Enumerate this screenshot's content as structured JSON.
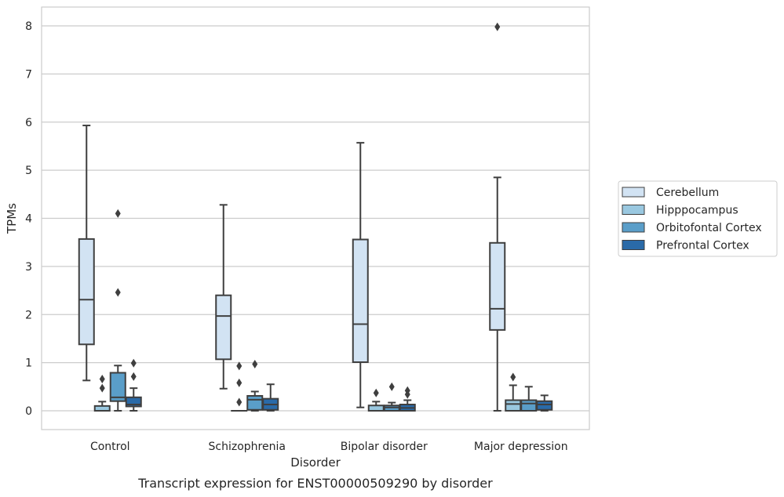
{
  "chart_data": {
    "type": "box",
    "title": "",
    "caption": "Transcript expression for ENST00000509290 by disorder",
    "xlabel": "Disorder",
    "ylabel": "TPMs",
    "ylim": [
      -0.4,
      8.4
    ],
    "yticks": [
      0,
      1,
      2,
      3,
      4,
      5,
      6,
      7,
      8
    ],
    "grid": "horizontal",
    "legend_position": "right",
    "categories": [
      "Control",
      "Schizophrenia",
      "Bipolar disorder",
      "Major depression"
    ],
    "series": [
      {
        "name": "Cerebellum",
        "color": "#d2e3f3",
        "boxes": [
          {
            "whislo": 0.63,
            "q1": 1.38,
            "med": 2.31,
            "q3": 3.57,
            "whishi": 5.93,
            "fliers": []
          },
          {
            "whislo": 0.46,
            "q1": 1.07,
            "med": 1.97,
            "q3": 2.4,
            "whishi": 4.28,
            "fliers": []
          },
          {
            "whislo": 0.07,
            "q1": 1.01,
            "med": 1.8,
            "q3": 3.56,
            "whishi": 5.57,
            "fliers": []
          },
          {
            "whislo": 0.0,
            "q1": 1.68,
            "med": 2.12,
            "q3": 3.49,
            "whishi": 4.85,
            "fliers": [
              7.98
            ]
          }
        ]
      },
      {
        "name": "Hipppocampus",
        "color": "#9ac8e0",
        "boxes": [
          {
            "whislo": 0.0,
            "q1": 0.0,
            "med": 0.0,
            "q3": 0.1,
            "whishi": 0.19,
            "fliers": [
              0.47,
              0.66
            ]
          },
          {
            "whislo": 0.0,
            "q1": 0.0,
            "med": 0.0,
            "q3": 0.0,
            "whishi": 0.0,
            "fliers": [
              0.18,
              0.58,
              0.93
            ]
          },
          {
            "whislo": 0.0,
            "q1": 0.0,
            "med": 0.0,
            "q3": 0.11,
            "whishi": 0.19,
            "fliers": [
              0.37
            ]
          },
          {
            "whislo": 0.0,
            "q1": 0.0,
            "med": 0.14,
            "q3": 0.22,
            "whishi": 0.53,
            "fliers": [
              0.7
            ]
          }
        ]
      },
      {
        "name": "Orbitofontal Cortex",
        "color": "#5a9ec9",
        "boxes": [
          {
            "whislo": 0.0,
            "q1": 0.2,
            "med": 0.28,
            "q3": 0.79,
            "whishi": 0.94,
            "fliers": [
              2.46,
              4.1
            ]
          },
          {
            "whislo": 0.0,
            "q1": 0.02,
            "med": 0.23,
            "q3": 0.31,
            "whishi": 0.4,
            "fliers": [
              0.97
            ]
          },
          {
            "whislo": 0.0,
            "q1": 0.0,
            "med": 0.07,
            "q3": 0.11,
            "whishi": 0.17,
            "fliers": [
              0.5
            ]
          },
          {
            "whislo": 0.0,
            "q1": 0.0,
            "med": 0.15,
            "q3": 0.22,
            "whishi": 0.5,
            "fliers": []
          }
        ]
      },
      {
        "name": "Prefrontal Cortex",
        "color": "#2a6aa8",
        "boxes": [
          {
            "whislo": 0.0,
            "q1": 0.09,
            "med": 0.13,
            "q3": 0.28,
            "whishi": 0.47,
            "fliers": [
              0.71,
              0.99
            ]
          },
          {
            "whislo": 0.0,
            "q1": 0.02,
            "med": 0.13,
            "q3": 0.25,
            "whishi": 0.55,
            "fliers": []
          },
          {
            "whislo": 0.0,
            "q1": 0.0,
            "med": 0.06,
            "q3": 0.13,
            "whishi": 0.22,
            "fliers": [
              0.34,
              0.42
            ]
          },
          {
            "whislo": 0.0,
            "q1": 0.02,
            "med": 0.13,
            "q3": 0.2,
            "whishi": 0.32,
            "fliers": []
          }
        ]
      }
    ]
  }
}
